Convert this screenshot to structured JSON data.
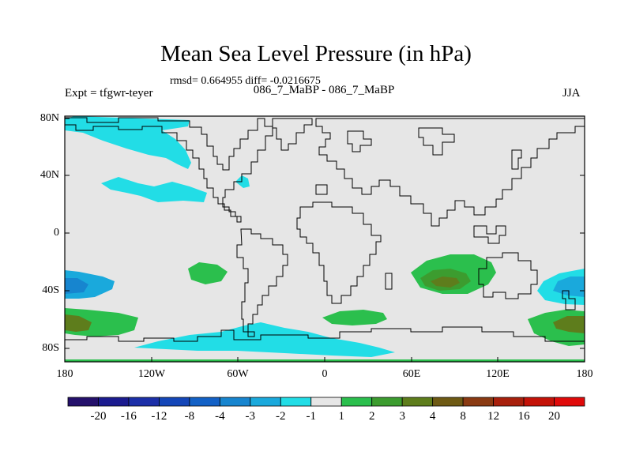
{
  "title": "Mean Sea Level Pressure (in hPa)",
  "stats": "rmsd= 0.664955 diff= -0.0216675",
  "expt": "Expt = tfgwr-teyer",
  "difference_label": "086_7_MaBP - 086_7_MaBP",
  "season": "JJA",
  "y_ticks": [
    "80N",
    "40N",
    "0",
    "40S",
    "80S"
  ],
  "x_ticks": [
    "180",
    "120W",
    "60W",
    "0",
    "60E",
    "120E",
    "180"
  ],
  "colorbar": {
    "labels": [
      "-20",
      "-16",
      "-12",
      "-8",
      "-4",
      "-3",
      "-2",
      "-1",
      "1",
      "2",
      "3",
      "4",
      "8",
      "12",
      "16",
      "20"
    ],
    "colors": [
      "#24106b",
      "#1b1b8f",
      "#1c2fa8",
      "#1446b8",
      "#1361c6",
      "#1785cf",
      "#1aa9dc",
      "#22dde6",
      "#e6e6e6",
      "#2bbf4d",
      "#3c9c2f",
      "#5e7d1c",
      "#6e5a14",
      "#8a3a12",
      "#a8200c",
      "#c41208",
      "#e00a0a"
    ]
  }
}
